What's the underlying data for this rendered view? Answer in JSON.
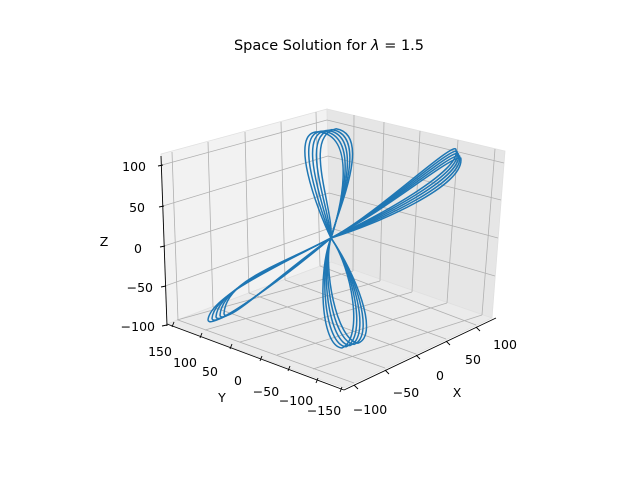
{
  "chart_data": {
    "type": "line3d",
    "title_prefix": "Space Solution for ",
    "title_symbol": "λ",
    "title_suffix": " = 1.5",
    "xlabel": "X",
    "ylabel": "Y",
    "zlabel": "Z",
    "x_ticks": [
      "−100",
      "−50",
      "0",
      "50",
      "100"
    ],
    "y_ticks": [
      "150",
      "100",
      "50",
      "0",
      "−50",
      "−100",
      "−150"
    ],
    "z_ticks": [
      "100",
      "50",
      "0",
      "−50",
      "−100"
    ],
    "xlim": [
      -125,
      125
    ],
    "ylim": [
      -150,
      150
    ],
    "zlim": [
      -100,
      100
    ],
    "grid": true,
    "line_color": "#1f77b4",
    "series": [
      {
        "description_values": {
          "loop_count": 5,
          "lobes": [
            {
              "x": 0,
              "y": 0,
              "z": 100
            },
            {
              "x": 0,
              "y": 0,
              "z": -100
            },
            {
              "x": 120,
              "y": -100,
              "z": 60
            },
            {
              "x": -120,
              "y": 100,
              "z": -60
            }
          ]
        }
      }
    ]
  }
}
